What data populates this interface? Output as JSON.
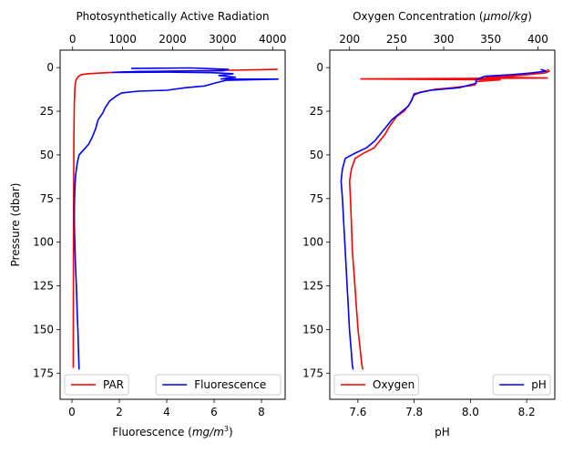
{
  "chart_data": [
    {
      "type": "line",
      "title": "Photosynthetically Active Radiation",
      "ylabel": "Pressure (dbar)",
      "ylim": [
        190,
        -10
      ],
      "y_ticks": [
        0,
        25,
        50,
        75,
        100,
        125,
        150,
        175
      ],
      "bottom_axis": {
        "label": "Fluorescence (mg/m³)",
        "label_pre": "Fluorescence (",
        "label_math": "mg/m",
        "label_sup": "3",
        "label_post": ")",
        "range": [
          -0.5,
          9.0
        ],
        "ticks": [
          0,
          2,
          4,
          6,
          8
        ]
      },
      "top_axis": {
        "label": "Photosynthetically Active Radiation",
        "range": [
          -250,
          4250
        ],
        "ticks": [
          0,
          1000,
          2000,
          3000,
          4000
        ]
      },
      "series": [
        {
          "name": "PAR",
          "color": "#ff0000",
          "axis": "top",
          "points": [
            [
              4100,
              1
            ],
            [
              3200,
              1.5
            ],
            [
              2000,
              2
            ],
            [
              1000,
              2.5
            ],
            [
              600,
              3
            ],
            [
              300,
              3.5
            ],
            [
              180,
              4
            ],
            [
              120,
              5
            ],
            [
              90,
              6
            ],
            [
              70,
              7
            ],
            [
              55,
              9
            ],
            [
              45,
              12
            ],
            [
              35,
              20
            ],
            [
              25,
              40
            ],
            [
              20,
              80
            ],
            [
              15,
              130
            ],
            [
              12,
              172
            ]
          ]
        },
        {
          "name": "Fluorescence",
          "color": "#0000ff",
          "axis": "bottom",
          "points": [
            [
              2.5,
              0.5
            ],
            [
              5.0,
              0.2
            ],
            [
              6.6,
              1
            ],
            [
              6.4,
              1.8
            ],
            [
              2.8,
              2.2
            ],
            [
              1.7,
              2.8
            ],
            [
              4.0,
              2.6
            ],
            [
              5.9,
              2.9
            ],
            [
              6.8,
              3.5
            ],
            [
              6.2,
              4.5
            ],
            [
              6.9,
              5.5
            ],
            [
              6.3,
              6.5
            ],
            [
              8.7,
              6.6
            ],
            [
              6.5,
              7.3
            ],
            [
              6.0,
              9
            ],
            [
              5.6,
              10.5
            ],
            [
              4.8,
              11.5
            ],
            [
              4.0,
              13
            ],
            [
              2.8,
              13.5
            ],
            [
              2.1,
              14.5
            ],
            [
              1.9,
              16
            ],
            [
              1.6,
              19
            ],
            [
              1.4,
              23
            ],
            [
              1.3,
              26
            ],
            [
              1.1,
              30
            ],
            [
              1.0,
              35
            ],
            [
              0.85,
              40
            ],
            [
              0.7,
              44
            ],
            [
              0.5,
              47
            ],
            [
              0.3,
              50
            ],
            [
              0.22,
              55
            ],
            [
              0.15,
              62
            ],
            [
              0.12,
              70
            ],
            [
              0.1,
              80
            ],
            [
              0.1,
              90
            ],
            [
              0.12,
              100
            ],
            [
              0.14,
              110
            ],
            [
              0.17,
              120
            ],
            [
              0.2,
              130
            ],
            [
              0.22,
              140
            ],
            [
              0.25,
              150
            ],
            [
              0.27,
              160
            ],
            [
              0.29,
              168
            ],
            [
              0.3,
              173
            ]
          ]
        }
      ],
      "legend": [
        {
          "label": "PAR",
          "color": "#ff0000",
          "position": "lower-left"
        },
        {
          "label": "Fluorescence",
          "color": "#0000ff",
          "position": "lower-right"
        }
      ]
    },
    {
      "type": "line",
      "title": "Oxygen Concentration (μmol/kg)",
      "ylabel": "",
      "ylim": [
        190,
        -10
      ],
      "y_ticks": [
        0,
        25,
        50,
        75,
        100,
        125,
        150,
        175
      ],
      "bottom_axis": {
        "label": "pH",
        "range": [
          7.5,
          8.3
        ],
        "ticks": [
          7.6,
          7.8,
          8.0,
          8.2
        ],
        "tick_labels": [
          "7.6",
          "7.8",
          "8.0",
          "8.2"
        ]
      },
      "top_axis": {
        "label": "Oxygen Concentration (μmol/kg)",
        "label_pre": "Oxygen Concentration (",
        "label_math": "μmol/kg",
        "label_post": ")",
        "range": [
          179,
          418
        ],
        "ticks": [
          200,
          250,
          300,
          350,
          400
        ]
      },
      "series": [
        {
          "name": "Oxygen",
          "color": "#ff0000",
          "axis": "top",
          "points": [
            [
              410,
              1
            ],
            [
              412,
              2
            ],
            [
              408,
              3
            ],
            [
              390,
              4
            ],
            [
              370,
              5
            ],
            [
              345,
              5.5
            ],
            [
              410,
              6
            ],
            [
              212,
              6.5
            ],
            [
              360,
              7
            ],
            [
              335,
              8
            ],
            [
              333,
              10
            ],
            [
              310,
              11.5
            ],
            [
              290,
              12.5
            ],
            [
              275,
              14
            ],
            [
              268,
              16
            ],
            [
              266,
              19
            ],
            [
              262,
              22
            ],
            [
              258,
              25
            ],
            [
              250,
              28
            ],
            [
              246,
              31
            ],
            [
              242,
              34
            ],
            [
              238,
              38
            ],
            [
              232,
              42
            ],
            [
              226,
              46
            ],
            [
              215,
              49
            ],
            [
              206,
              52
            ],
            [
              202,
              58
            ],
            [
              200,
              65
            ],
            [
              201,
              75
            ],
            [
              202,
              90
            ],
            [
              203,
              105
            ],
            [
              205,
              120
            ],
            [
              207,
              135
            ],
            [
              209,
              150
            ],
            [
              211,
              160
            ],
            [
              213,
              170
            ],
            [
              214,
              173
            ]
          ]
        },
        {
          "name": "pH",
          "color": "#0000ff",
          "axis": "bottom",
          "points": [
            [
              8.25,
              1
            ],
            [
              8.27,
              2
            ],
            [
              8.22,
              3
            ],
            [
              8.15,
              4
            ],
            [
              8.05,
              5
            ],
            [
              8.02,
              7
            ],
            [
              8.02,
              9
            ],
            [
              7.96,
              11.5
            ],
            [
              7.86,
              13
            ],
            [
              7.8,
              15
            ],
            [
              7.79,
              19
            ],
            [
              7.78,
              22
            ],
            [
              7.75,
              26
            ],
            [
              7.72,
              30
            ],
            [
              7.7,
              34
            ],
            [
              7.68,
              38
            ],
            [
              7.66,
              42
            ],
            [
              7.63,
              46
            ],
            [
              7.59,
              49
            ],
            [
              7.555,
              52
            ],
            [
              7.545,
              58
            ],
            [
              7.54,
              65
            ],
            [
              7.545,
              75
            ],
            [
              7.55,
              90
            ],
            [
              7.555,
              105
            ],
            [
              7.56,
              120
            ],
            [
              7.565,
              135
            ],
            [
              7.57,
              150
            ],
            [
              7.575,
              160
            ],
            [
              7.58,
              170
            ],
            [
              7.583,
              173
            ]
          ]
        }
      ],
      "legend": [
        {
          "label": "Oxygen",
          "color": "#ff0000",
          "position": "lower-left"
        },
        {
          "label": "pH",
          "color": "#0000ff",
          "position": "lower-right"
        }
      ]
    }
  ]
}
